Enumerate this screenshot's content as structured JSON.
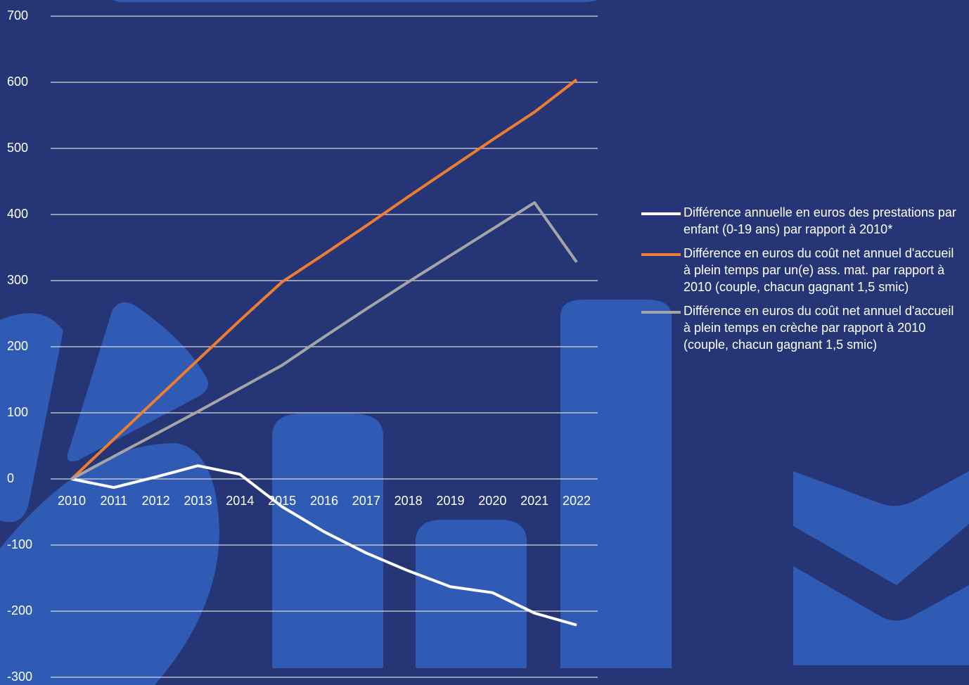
{
  "chart_data": {
    "type": "line",
    "categories": [
      "2010",
      "2011",
      "2012",
      "2013",
      "2014",
      "2015",
      "2016",
      "2017",
      "2018",
      "2019",
      "2020",
      "2021",
      "2022"
    ],
    "series": [
      {
        "name": "Différence annuelle en euros des prestations par enfant (0-19 ans) par rapport à 2010*",
        "color": "#ffffff",
        "values": [
          0,
          -13,
          3,
          20,
          7,
          -42,
          -80,
          -112,
          -139,
          -163,
          -172,
          -203,
          -221
        ]
      },
      {
        "name": "Différence en euros du coût net annuel d'accueil à plein temps par un(e) ass. mat. par rapport à 2010 (couple, chacun gagnant 1,5 smic)",
        "color": "#ed7d31",
        "values": [
          0,
          60,
          120,
          180,
          240,
          298,
          340,
          383,
          427,
          470,
          513,
          555,
          604
        ]
      },
      {
        "name": "Différence en euros du coût net annuel d'accueil à plein temps en crèche par rapport à 2010 (couple, chacun gagnant 1,5 smic)",
        "color": "#a5a5a5",
        "values": [
          0,
          34,
          68,
          102,
          137,
          172,
          215,
          257,
          298,
          338,
          378,
          418,
          328
        ]
      }
    ],
    "ylim": [
      -300,
      700
    ],
    "yticks": [
      -300,
      -200,
      -100,
      0,
      100,
      200,
      300,
      400,
      500,
      600,
      700
    ],
    "grid": true
  }
}
